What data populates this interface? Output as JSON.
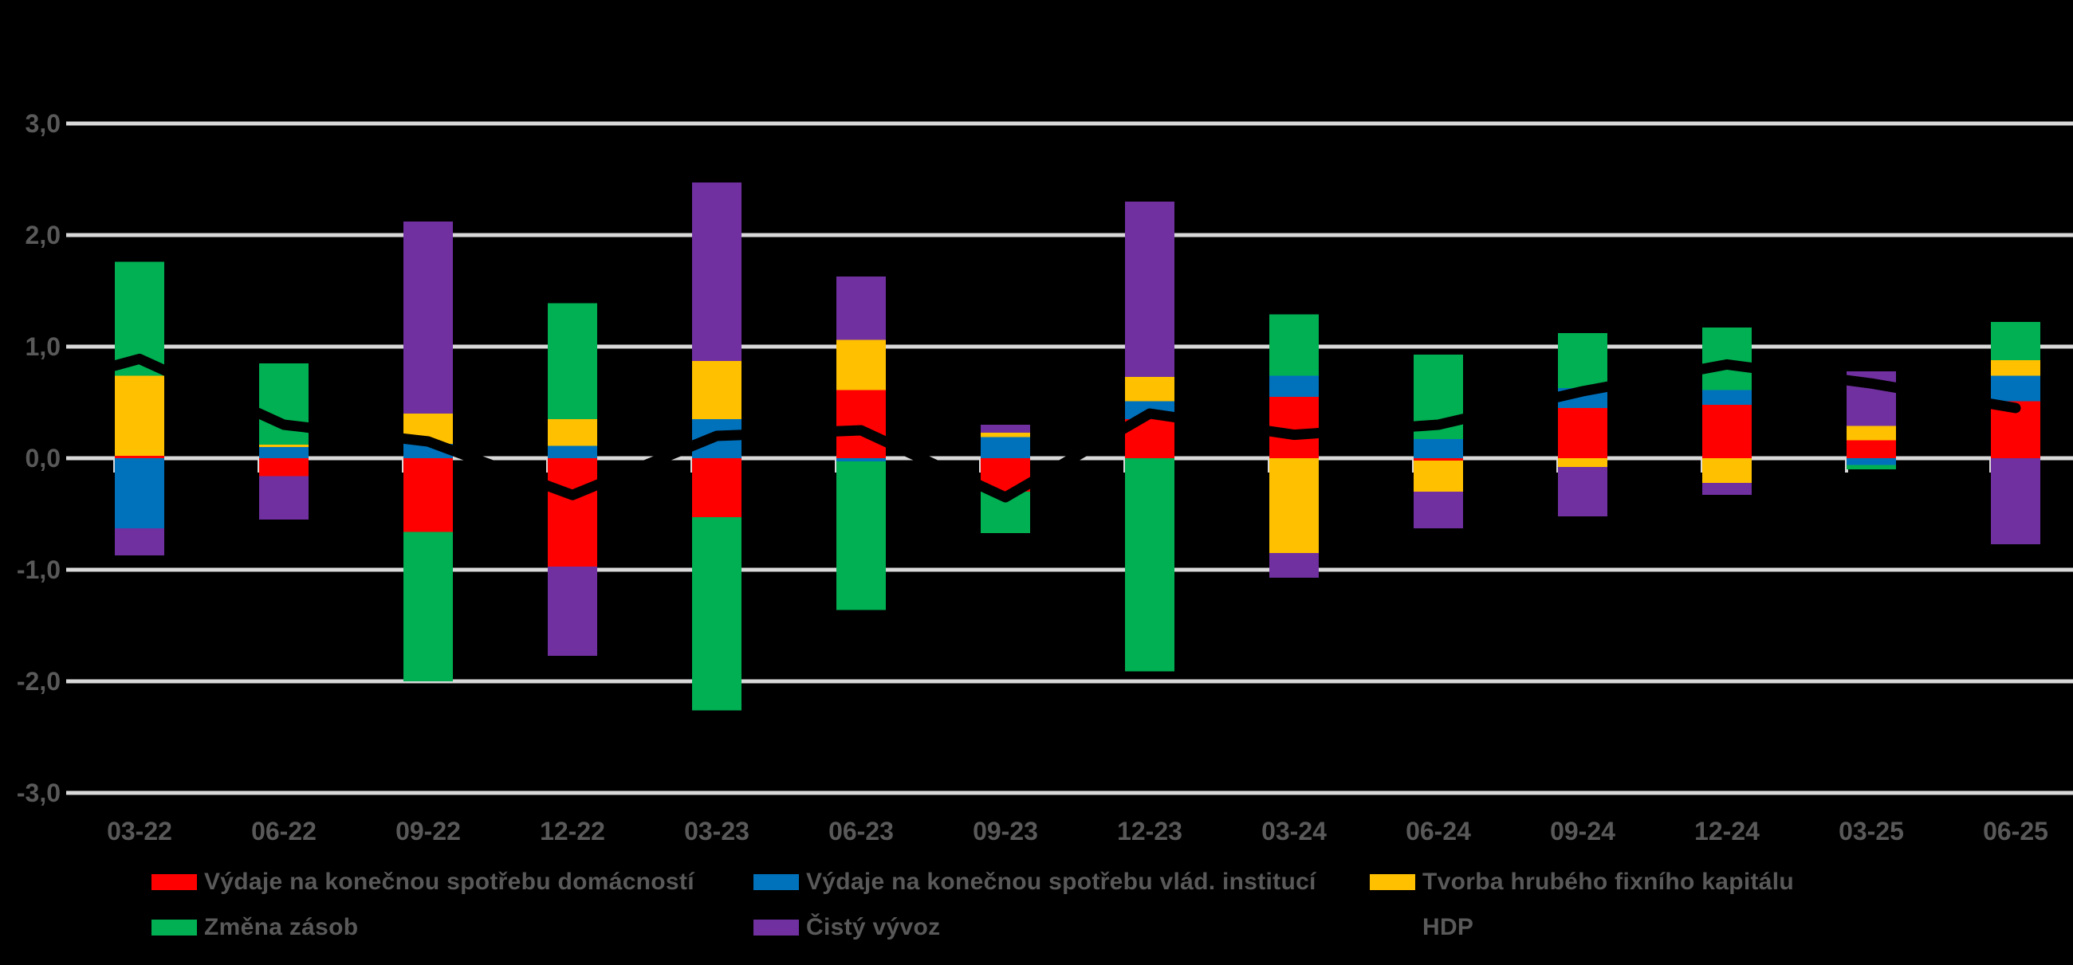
{
  "colors": {
    "background": "#000000",
    "grid": "#D9D9D9",
    "axis_text": "#595959",
    "hdp_line": "#000000",
    "household": "#FF0000",
    "government": "#0072BC",
    "fixed_capital": "#FFC000",
    "inventories": "#00B052",
    "net_exports": "#7030A0"
  },
  "y_axis": {
    "tick_labels": [
      "3,0",
      "2,0",
      "1,0",
      "0,0",
      "-1,0",
      "-2,0",
      "-3,0"
    ],
    "tick_values": [
      3,
      2,
      1,
      0,
      -1,
      -2,
      -3
    ]
  },
  "chart_data": {
    "type": "bar",
    "subtype": "stacked-bar-with-line",
    "title": "",
    "xlabel": "",
    "ylabel": "",
    "ylim": [
      -3.0,
      3.0
    ],
    "grid": "horizontal",
    "legend_position": "bottom",
    "categories": [
      "03-22",
      "06-22",
      "09-22",
      "12-22",
      "03-23",
      "06-23",
      "09-23",
      "12-23",
      "03-24",
      "06-24",
      "09-24",
      "12-24",
      "03-25",
      "06-25"
    ],
    "series": [
      {
        "name": "Výdaje na konečnou spotřebu domácností",
        "color": "#FF0000",
        "values": [
          0.02,
          -0.16,
          -0.66,
          -0.97,
          -0.53,
          0.61,
          -0.3,
          0.35,
          0.55,
          -0.02,
          0.45,
          0.48,
          0.16,
          0.51
        ]
      },
      {
        "name": "Výdaje na konečnou spotřebu vlád. institucí",
        "color": "#0072BC",
        "values": [
          -0.63,
          0.1,
          0.13,
          0.11,
          0.35,
          -0.03,
          0.19,
          0.16,
          0.19,
          0.17,
          0.18,
          0.13,
          -0.06,
          0.23
        ]
      },
      {
        "name": "Tvorba hrubého fixního kapitálu",
        "color": "#FFC000",
        "values": [
          0.72,
          0.02,
          0.27,
          0.24,
          0.52,
          0.45,
          0.04,
          0.22,
          -0.85,
          -0.28,
          -0.08,
          -0.22,
          0.13,
          0.14
        ]
      },
      {
        "name": "Změna zásob",
        "color": "#00B052",
        "values": [
          1.02,
          0.73,
          -1.34,
          1.04,
          -1.73,
          -1.33,
          -0.37,
          -1.91,
          0.55,
          0.76,
          0.49,
          0.56,
          -0.04,
          0.34
        ]
      },
      {
        "name": "Čistý vývoz",
        "color": "#7030A0",
        "values": [
          -0.24,
          -0.39,
          1.72,
          -0.8,
          1.6,
          0.57,
          0.07,
          1.57,
          -0.22,
          -0.33,
          -0.44,
          -0.11,
          0.49,
          -0.77
        ]
      }
    ],
    "line_series": {
      "name": "HDP",
      "color": "#000000",
      "values": [
        0.89,
        0.3,
        0.15,
        -0.33,
        0.2,
        0.25,
        -0.35,
        0.4,
        0.21,
        0.3,
        0.6,
        0.84,
        0.67,
        0.45
      ]
    }
  },
  "legend": {
    "items": [
      {
        "label": "Výdaje na konečnou spotřebu domácností",
        "color": "#FF0000"
      },
      {
        "label": "Výdaje na konečnou spotřebu vlád. institucí",
        "color": "#0072BC"
      },
      {
        "label": "Tvorba hrubého fixního kapitálu",
        "color": "#FFC000"
      },
      {
        "label": "Změna zásob",
        "color": "#00B052"
      },
      {
        "label": "Čistý vývoz",
        "color": "#7030A0"
      },
      {
        "label": "HDP",
        "color": "#000000"
      }
    ]
  }
}
